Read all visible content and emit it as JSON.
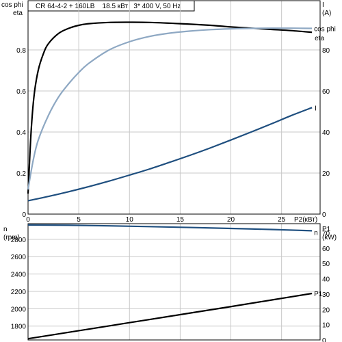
{
  "chart_data": [
    {
      "type": "line",
      "title": "CR 64-4-2 + 160LB    18.5 кВт   3* 400 V, 50 Hz",
      "xlabel": "P2(кВт)",
      "ylabel_left_1": "cos phi",
      "ylabel_left_2": "eta",
      "ylabel_right_1": "I",
      "ylabel_right_2": "(A)",
      "xlim": [
        0,
        28.8
      ],
      "ylim_left": [
        0,
        1.04
      ],
      "ylim_right": [
        0,
        104
      ],
      "xticks": [
        0,
        5,
        10,
        15,
        20,
        25
      ],
      "xtick_labels": [
        "0",
        "5",
        "10",
        "15",
        "20",
        "25"
      ],
      "yticks_left": [
        0,
        0.2,
        0.4,
        0.6,
        0.8
      ],
      "ytick_labels_left": [
        "0",
        "0.2",
        "0.4",
        "0.6",
        "0.8"
      ],
      "yticks_right": [
        0,
        20,
        40,
        60,
        80
      ],
      "ytick_labels_right": [
        "0",
        "20",
        "40",
        "60",
        "80"
      ],
      "grid": true,
      "series": [
        {
          "name": "eta",
          "axis": "left",
          "color": "#000000",
          "x": [
            0,
            0.3,
            0.6,
            1,
            1.5,
            2,
            3,
            4,
            5,
            6,
            8,
            10,
            12,
            15,
            18,
            20,
            22,
            24,
            26,
            28
          ],
          "values": [
            0.1,
            0.4,
            0.58,
            0.7,
            0.78,
            0.83,
            0.88,
            0.905,
            0.92,
            0.928,
            0.934,
            0.935,
            0.934,
            0.928,
            0.92,
            0.912,
            0.906,
            0.9,
            0.894,
            0.886
          ]
        },
        {
          "name": "cos phi",
          "axis": "left",
          "color": "#8ea8c3",
          "x": [
            0,
            0.5,
            1,
            2,
            3,
            4,
            5,
            6,
            8,
            10,
            12,
            14,
            16,
            18,
            20,
            22,
            24,
            26,
            28
          ],
          "values": [
            0.12,
            0.26,
            0.36,
            0.48,
            0.57,
            0.635,
            0.69,
            0.735,
            0.8,
            0.84,
            0.866,
            0.882,
            0.892,
            0.899,
            0.903,
            0.905,
            0.906,
            0.906,
            0.905
          ]
        },
        {
          "name": "I",
          "axis": "right",
          "color": "#1f4f7f",
          "x": [
            0,
            2,
            4,
            6,
            8,
            10,
            12,
            14,
            16,
            18,
            20,
            22,
            24,
            26,
            28
          ],
          "values": [
            6.5,
            8.6,
            10.9,
            13.4,
            16.1,
            19.0,
            22.0,
            25.3,
            28.7,
            32.3,
            36.1,
            40.0,
            44.0,
            48.1,
            51.9
          ]
        }
      ]
    },
    {
      "type": "line",
      "xlim": [
        0,
        28.8
      ],
      "ylabel_left_1": "n",
      "ylabel_left_2": "(rpm)",
      "ylabel_right_1": "P1",
      "ylabel_right_2": "(kW)",
      "ylim_left": [
        1640,
        2980
      ],
      "ylim_right": [
        0,
        76
      ],
      "yticks_left": [
        1800,
        2000,
        2200,
        2400,
        2600,
        2800
      ],
      "ytick_labels_left": [
        "1800",
        "2000",
        "2200",
        "2400",
        "2600",
        "2800"
      ],
      "yticks_right": [
        0,
        10,
        20,
        30,
        40,
        50,
        60,
        70
      ],
      "ytick_labels_right": [
        "0",
        "10",
        "20",
        "30",
        "40",
        "50",
        "60",
        "70"
      ],
      "grid": true,
      "series": [
        {
          "name": "n",
          "axis": "left",
          "color": "#1f4f7f",
          "x": [
            0,
            4,
            8,
            12,
            16,
            20,
            24,
            28
          ],
          "values": [
            2965,
            2962,
            2955,
            2946,
            2936,
            2925,
            2913,
            2898
          ]
        },
        {
          "name": "P1",
          "axis": "right",
          "color": "#000000",
          "x": [
            0,
            4,
            8,
            12,
            16,
            20,
            24,
            28
          ],
          "values": [
            0.8,
            5.0,
            9.2,
            13.4,
            17.6,
            21.8,
            26.1,
            30.4
          ]
        }
      ]
    }
  ]
}
